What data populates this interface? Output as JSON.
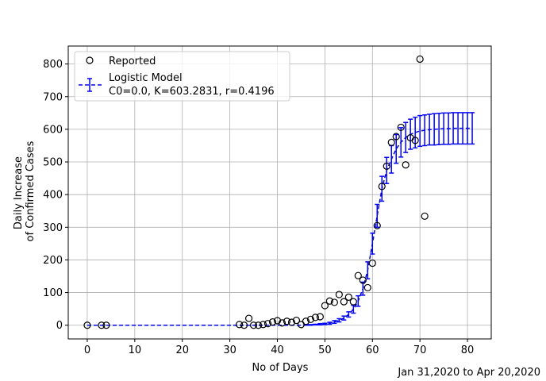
{
  "footer_note": "Jan 31,2020 to Apr 20,2020",
  "colors": {
    "reported": "#000000",
    "model": "#0000ff",
    "grid": "#b0b0b0"
  },
  "chart_data": {
    "type": "scatter",
    "xlabel": "No of Days",
    "ylabel": [
      "Daily Increase",
      "of Confirmed Cases"
    ],
    "xlim": [
      -4,
      85
    ],
    "ylim": [
      -42,
      855
    ],
    "xticks": [
      0,
      10,
      20,
      30,
      40,
      50,
      60,
      70,
      80
    ],
    "yticks": [
      0,
      100,
      200,
      300,
      400,
      500,
      600,
      700,
      800
    ],
    "grid": true,
    "legend_position": "top-left",
    "series": [
      {
        "name": "Reported",
        "marker": "open-circle",
        "x": [
          0,
          3,
          4,
          32,
          33,
          34,
          35,
          36,
          37,
          38,
          39,
          40,
          41,
          42,
          43,
          44,
          45,
          46,
          47,
          48,
          49,
          50,
          51,
          52,
          53,
          54,
          55,
          56,
          57,
          58,
          59,
          60,
          61,
          62,
          63,
          64,
          65,
          66,
          67,
          68,
          69,
          70,
          71
        ],
        "y": [
          0,
          0,
          0,
          2,
          0,
          21,
          0,
          0,
          2,
          5,
          10,
          14,
          7,
          12,
          9,
          15,
          2,
          12,
          18,
          24,
          26,
          60,
          74,
          70,
          94,
          72,
          86,
          72,
          152,
          138,
          115,
          190,
          305,
          425,
          487,
          560,
          578,
          606,
          491,
          574,
          566,
          815,
          334
        ]
      },
      {
        "name": "Logistic Model\nC0=0.0, K=603.2831, r=0.4196",
        "style": "dashed-line-with-errorbars",
        "x": [
          0,
          1,
          2,
          3,
          4,
          5,
          6,
          7,
          8,
          9,
          10,
          11,
          12,
          13,
          14,
          15,
          16,
          17,
          18,
          19,
          20,
          21,
          22,
          23,
          24,
          25,
          26,
          27,
          28,
          29,
          30,
          31,
          32,
          33,
          34,
          35,
          36,
          37,
          38,
          39,
          40,
          41,
          42,
          43,
          44,
          45,
          46,
          47,
          48,
          49,
          50,
          51,
          52,
          53,
          54,
          55,
          56,
          57,
          58,
          59,
          60,
          61,
          62,
          63,
          64,
          65,
          66,
          67,
          68,
          69,
          70,
          71,
          72,
          73,
          74,
          75,
          76,
          77,
          78,
          79,
          80,
          81
        ],
        "y": [
          0,
          0,
          0,
          0,
          0,
          0,
          0,
          0,
          0,
          0,
          0,
          0,
          0,
          0,
          0,
          0,
          0,
          0,
          0,
          0,
          0,
          0,
          0,
          0,
          0,
          0,
          0,
          0,
          0,
          0,
          0,
          0,
          0,
          0,
          0,
          0,
          0,
          0,
          0,
          0,
          0,
          0,
          0,
          0,
          0,
          0,
          1,
          1,
          2,
          3,
          4,
          6,
          10,
          15,
          22,
          33,
          49,
          74,
          112,
          168,
          250,
          335,
          418,
          474,
          508,
          540,
          560,
          575,
          585,
          590,
          595,
          597,
          599,
          600,
          601,
          602,
          602,
          603,
          603,
          603,
          603,
          603
        ],
        "err": [
          0,
          0,
          0,
          0,
          0,
          0,
          0,
          0,
          0,
          0,
          0,
          0,
          0,
          0,
          0,
          0,
          0,
          0,
          0,
          0,
          0,
          0,
          0,
          0,
          0,
          0,
          0,
          0,
          0,
          0,
          0,
          0,
          0,
          0,
          0,
          0,
          0,
          0,
          0,
          0,
          0,
          0,
          0,
          0,
          0,
          0,
          1,
          1,
          1,
          2,
          2,
          3,
          4,
          5,
          6,
          8,
          12,
          16,
          20,
          26,
          32,
          35,
          38,
          40,
          42,
          44,
          45,
          46,
          46,
          47,
          47,
          47,
          47,
          48,
          48,
          48,
          48,
          48,
          48,
          48,
          48,
          48
        ]
      }
    ]
  }
}
